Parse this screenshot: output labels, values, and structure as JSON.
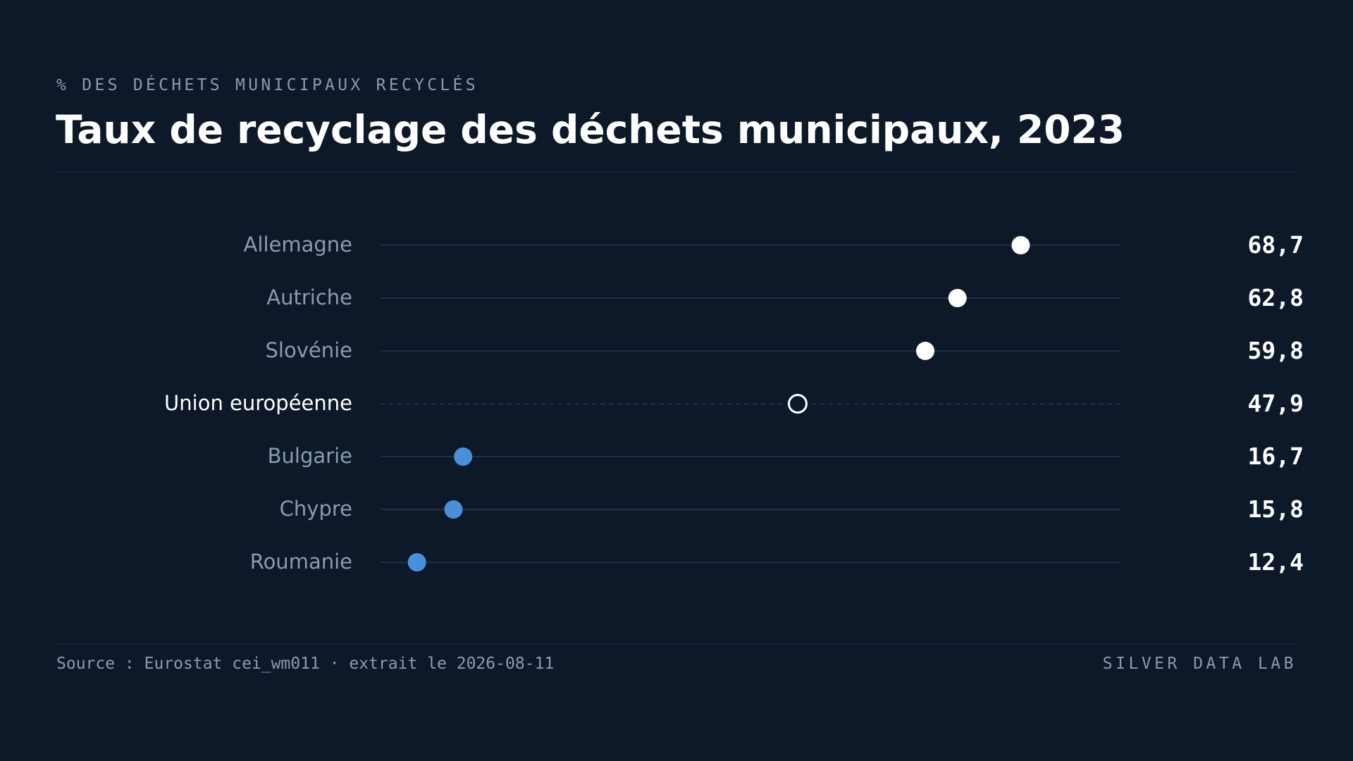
{
  "header": {
    "kicker": "% DES DÉCHETS MUNICIPAUX RECYCLÉS",
    "title": "Taux de recyclage des déchets municipaux, 2023"
  },
  "footer": {
    "source": "Source : Eurostat cei_wm011 · extrait le 2026-08-11",
    "brand": "SILVER DATA LAB"
  },
  "colors": {
    "background": "#0d1829",
    "high": "#ffffff",
    "low": "#4a90d9",
    "reference": "#ffffff",
    "track": "#1f3048",
    "label": "#8b9bb3",
    "reference_label": "#ffffff",
    "value": "#ffffff"
  },
  "chart_data": {
    "type": "dot",
    "title": "Taux de recyclage des déchets municipaux, 2023",
    "subtitle": "% DES DÉCHETS MUNICIPAUX RECYCLÉS",
    "xlim": [
      9,
      78
    ],
    "grid": false,
    "categories": [
      "Allemagne",
      "Autriche",
      "Slovénie",
      "Union européenne",
      "Bulgarie",
      "Chypre",
      "Roumanie"
    ],
    "values": [
      68.7,
      62.8,
      59.8,
      47.9,
      16.7,
      15.8,
      12.4
    ],
    "value_labels": [
      "68,7",
      "62,8",
      "59,8",
      "47,9",
      "16,7",
      "15,8",
      "12,4"
    ],
    "groups": [
      "high",
      "high",
      "high",
      "reference",
      "low",
      "low",
      "low"
    ]
  }
}
